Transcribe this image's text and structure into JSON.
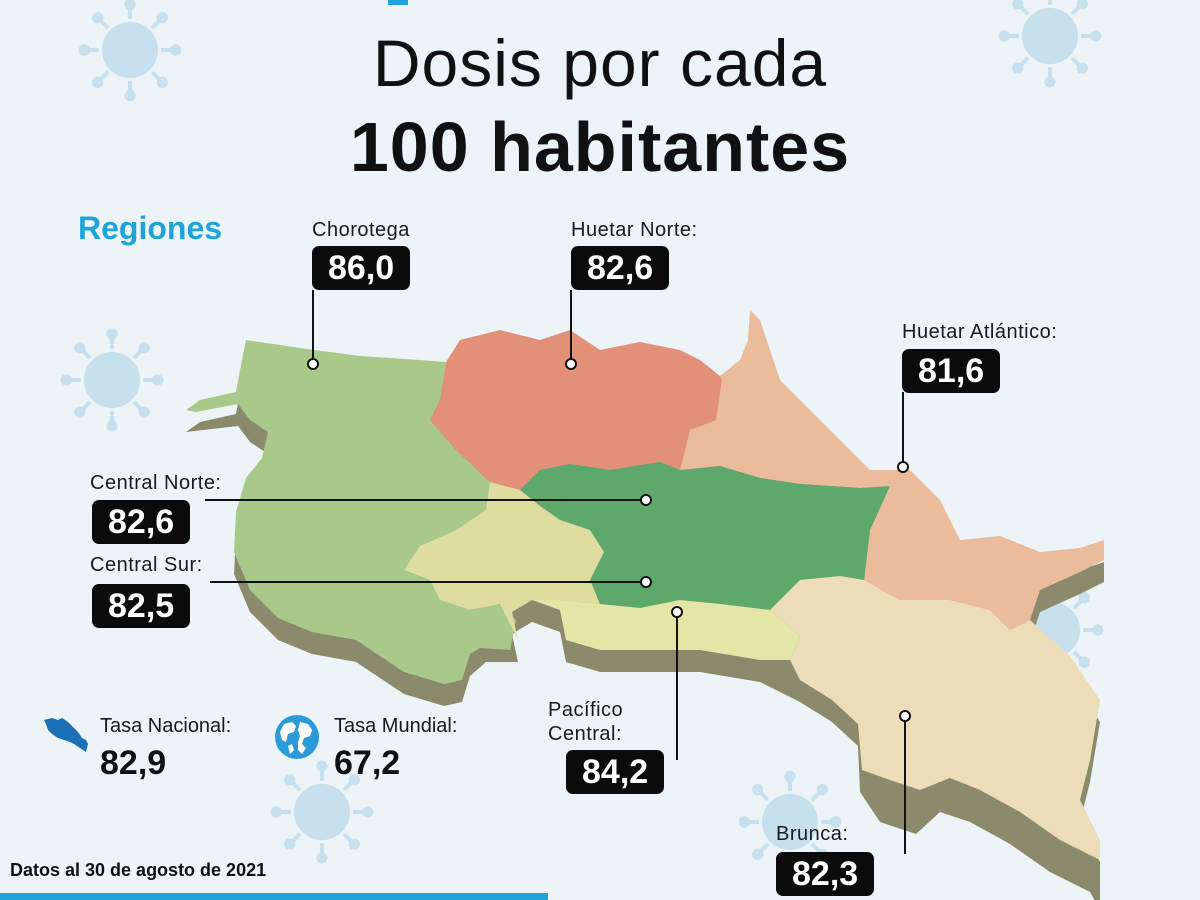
{
  "title": {
    "line1": "Dosis por cada",
    "line2": "100 habitantes"
  },
  "regions_label": "Regiones",
  "regions": [
    {
      "name": "Chorotega",
      "value": "86,0",
      "color": "#a9c98a"
    },
    {
      "name": "Huetar Norte:",
      "value": "82,6",
      "color": "#e3907a"
    },
    {
      "name": "Huetar Atlántico:",
      "value": "81,6",
      "color": "#ebbc9b"
    },
    {
      "name": "Central Norte:",
      "value": "82,6",
      "color": "#5ea86c"
    },
    {
      "name": "Central Sur:",
      "value": "82,5",
      "color": "#dfdca0"
    },
    {
      "name": "Pacífico Central:",
      "value": "84,2",
      "color": "#e4e6a8"
    },
    {
      "name": "Brunca:",
      "value": "82,3",
      "color": "#ecdcb8"
    }
  ],
  "national": {
    "label": "Tasa Nacional:",
    "value": "82,9",
    "icon": "costa-rica-map-icon"
  },
  "world": {
    "label": "Tasa Mundial:",
    "value": "67,2",
    "icon": "globe-icon"
  },
  "footnote": "Datos al 30 de agosto de 2021",
  "colors": {
    "accent": "#1fa3d9",
    "background": "#edf4f8",
    "label_box": "#0b0b0b",
    "virus": "#c8e0ee"
  }
}
